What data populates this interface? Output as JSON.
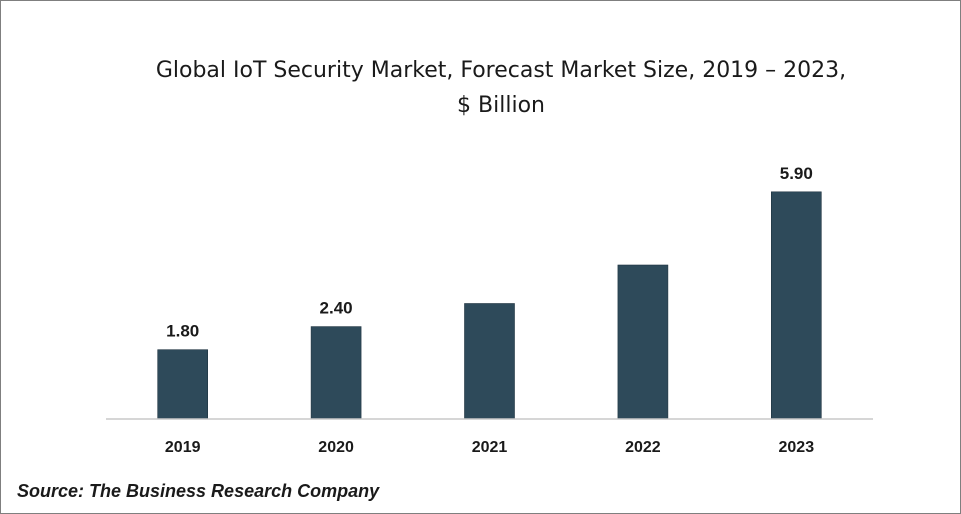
{
  "chart_data": {
    "type": "bar",
    "title_line1": "Global IoT Security Market, Forecast Market Size, 2019 – 2023,",
    "title_line2": "$ Billion",
    "categories": [
      "2019",
      "2020",
      "2021",
      "2022",
      "2023"
    ],
    "values": [
      1.8,
      2.4,
      3.0,
      4.0,
      5.9
    ],
    "data_labels": [
      "1.80",
      "2.40",
      "",
      "",
      "5.90"
    ],
    "xlabel": "",
    "ylabel": "",
    "ylim": [
      0,
      6.5
    ],
    "grid": false,
    "legend": "none",
    "bar_color": "#2e4a5a"
  },
  "source": "Source: The Business Research Company"
}
